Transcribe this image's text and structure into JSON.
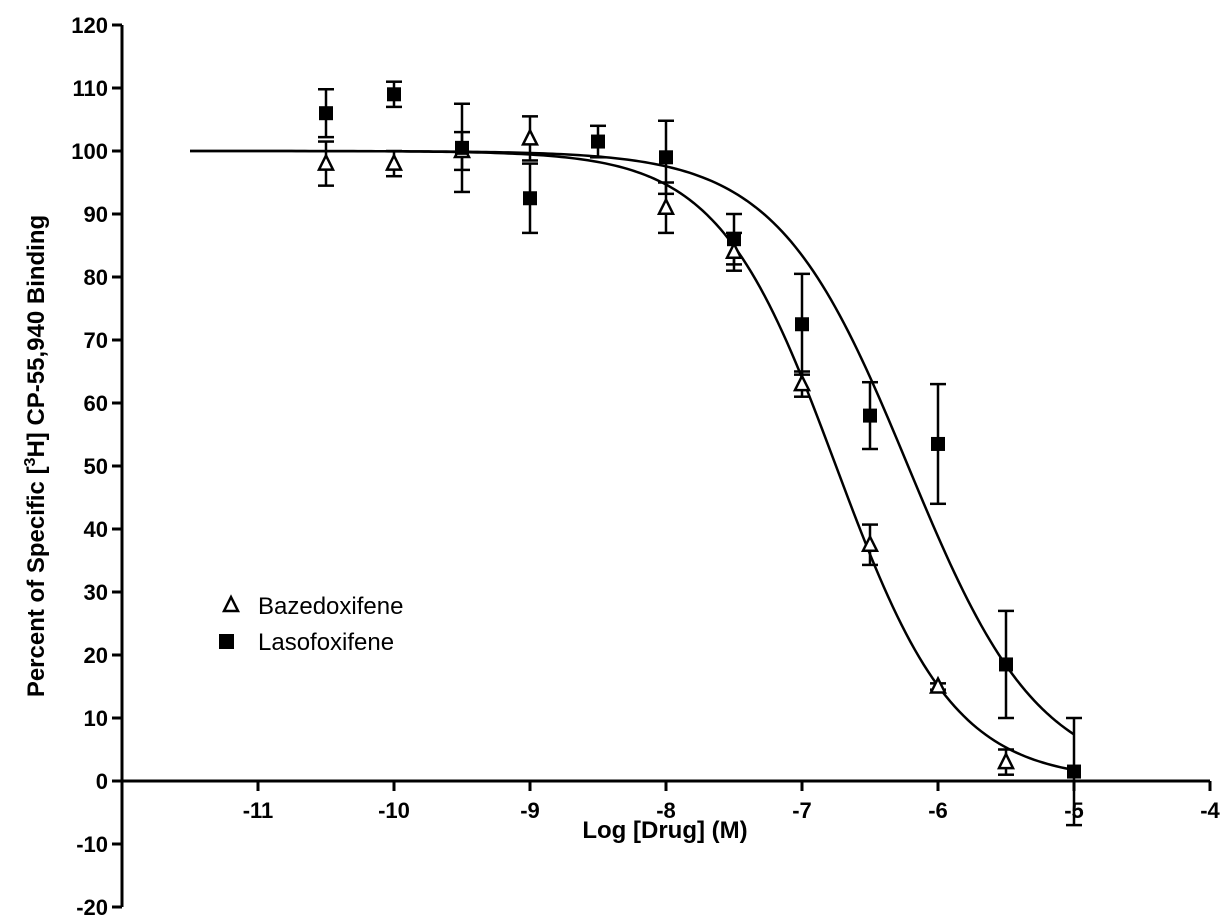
{
  "chart_data": {
    "type": "scatter",
    "xlabel": "Log [Drug] (M)",
    "ylabel_prefix": "Percent of Specific [",
    "ylabel_sup": "3",
    "ylabel_suffix": "H] CP-55,940 Binding",
    "xlim": [
      -12,
      -4
    ],
    "ylim": [
      -20,
      120
    ],
    "x_ticks": [
      -11,
      -10,
      -9,
      -8,
      -7,
      -6,
      -5,
      -4
    ],
    "y_ticks": [
      -20,
      -10,
      0,
      10,
      20,
      30,
      40,
      50,
      60,
      70,
      80,
      90,
      100,
      110,
      120
    ],
    "x_tick_labels": [
      "-11",
      "-10",
      "-9",
      "-8",
      "-7",
      "-6",
      "-5",
      "-4"
    ],
    "y_tick_labels": [
      "-20",
      "-10",
      "0",
      "10",
      "20",
      "30",
      "40",
      "50",
      "60",
      "70",
      "80",
      "90",
      "100",
      "110",
      "120"
    ],
    "legend_position": "left-center",
    "series": [
      {
        "name": "Bazedoxifene",
        "marker": "open-triangle",
        "color": "#000000",
        "points": [
          {
            "x": -10.5,
            "y": 98,
            "err": 3.5
          },
          {
            "x": -10,
            "y": 98,
            "err": 2
          },
          {
            "x": -9.5,
            "y": 100,
            "err": 3
          },
          {
            "x": -9,
            "y": 102,
            "err": 3.5
          },
          {
            "x": -8,
            "y": 91,
            "err": 4
          },
          {
            "x": -7.5,
            "y": 84,
            "err": 3
          },
          {
            "x": -7,
            "y": 63,
            "err": 2
          },
          {
            "x": -6.5,
            "y": 37.5,
            "err": 3.2
          },
          {
            "x": -6,
            "y": 15,
            "err": 0.5
          },
          {
            "x": -5.5,
            "y": 3,
            "err": 2
          }
        ],
        "fit": {
          "top": 100,
          "bottom": 0,
          "logEC50": -6.75,
          "hill": 1.0
        }
      },
      {
        "name": "Lasofoxifene",
        "marker": "filled-square",
        "color": "#000000",
        "points": [
          {
            "x": -10.5,
            "y": 106,
            "err": 3.8
          },
          {
            "x": -10,
            "y": 109,
            "err": 2
          },
          {
            "x": -9.5,
            "y": 100.5,
            "err": 7
          },
          {
            "x": -9,
            "y": 92.5,
            "err": 5.5
          },
          {
            "x": -8.5,
            "y": 101.5,
            "err": 2.5
          },
          {
            "x": -8,
            "y": 99,
            "err": 5.8
          },
          {
            "x": -7.5,
            "y": 86,
            "err": 4
          },
          {
            "x": -7,
            "y": 72.5,
            "err": 8
          },
          {
            "x": -6.5,
            "y": 58,
            "err": 5.3
          },
          {
            "x": -6,
            "y": 53.5,
            "err": 9.5
          },
          {
            "x": -5.5,
            "y": 18.5,
            "err": 8.5
          },
          {
            "x": -5,
            "y": 1.5,
            "err": 8.5
          }
        ],
        "fit": {
          "top": 100,
          "bottom": 0,
          "logEC50": -6.22,
          "hill": 0.9
        }
      }
    ]
  }
}
